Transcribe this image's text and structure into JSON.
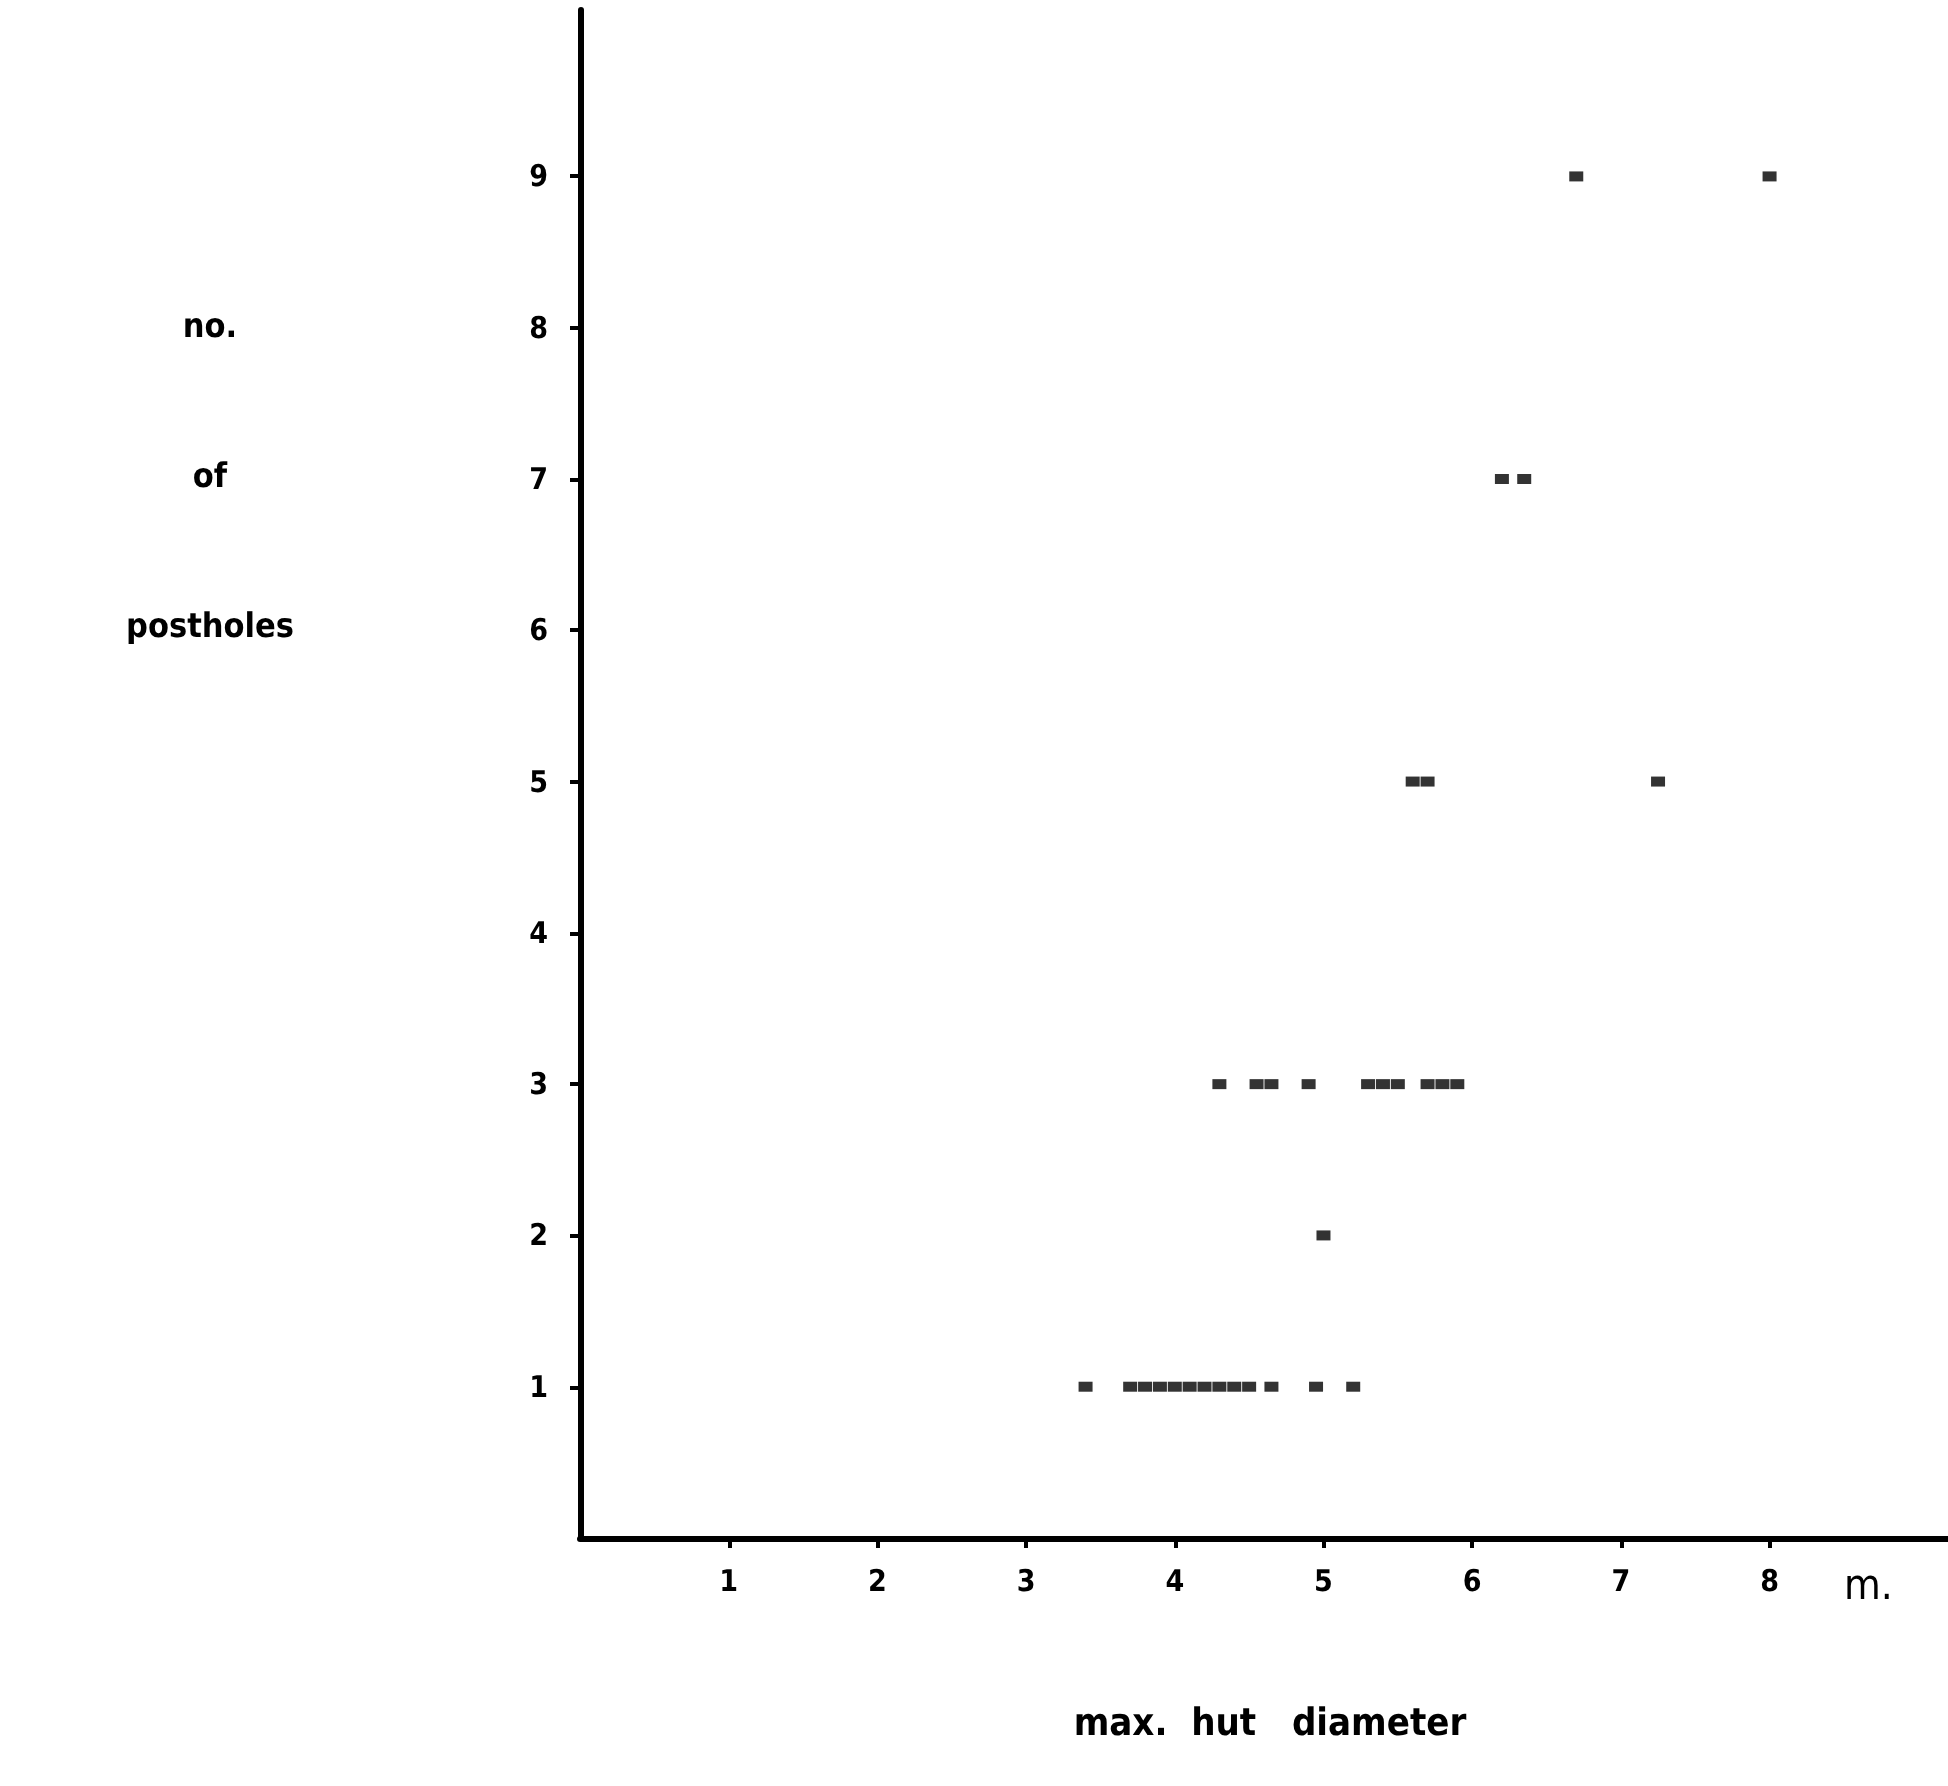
{
  "chart_data": {
    "type": "scatter",
    "xlabel": "max.  hut   diameter",
    "ylabel": "no.\nof\npostholes",
    "annotations": [
      "m."
    ],
    "x": [
      3.4,
      3.7,
      3.8,
      3.9,
      4.0,
      4.1,
      4.2,
      4.3,
      4.4,
      4.5,
      4.65,
      4.95,
      5.2,
      5.0,
      4.3,
      4.55,
      4.65,
      4.9,
      5.3,
      5.4,
      5.5,
      5.7,
      5.8,
      5.9,
      5.6,
      5.7,
      7.25,
      6.2,
      6.35,
      6.7,
      8.0
    ],
    "series": [
      {
        "color": "#000000",
        "values": [
          1,
          1,
          1,
          1,
          1,
          1,
          1,
          1,
          1,
          1,
          1,
          1,
          1,
          2,
          3,
          3,
          3,
          3,
          3,
          3,
          3,
          3,
          3,
          3,
          5,
          5,
          5,
          7,
          7,
          9,
          9
        ]
      }
    ],
    "xlim": [
      0,
      9.2
    ],
    "xticks": [
      1,
      2,
      3,
      4,
      5,
      6,
      7,
      8
    ],
    "ylim": [
      0,
      10.1
    ],
    "yticks": [
      1,
      2,
      3,
      4,
      5,
      6,
      7,
      8,
      9
    ],
    "grid": false,
    "marker": "square"
  }
}
